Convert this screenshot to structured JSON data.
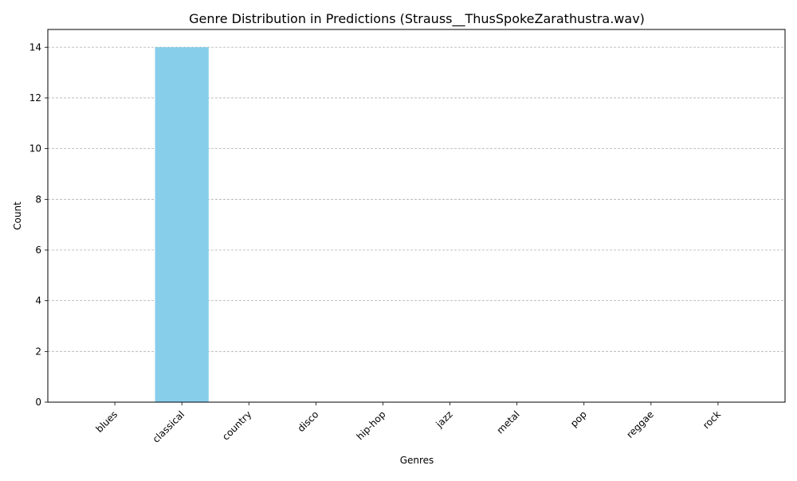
{
  "chart_data": {
    "type": "bar",
    "title": "Genre Distribution in Predictions (Strauss__ThusSpokeZarathustra.wav)",
    "xlabel": "Genres",
    "ylabel": "Count",
    "categories": [
      "blues",
      "classical",
      "country",
      "disco",
      "hip-hop",
      "jazz",
      "metal",
      "pop",
      "reggae",
      "rock"
    ],
    "values": [
      0,
      14,
      0,
      0,
      0,
      0,
      0,
      0,
      0,
      0
    ],
    "ylim": [
      0,
      14.7
    ],
    "yticks": [
      0,
      2,
      4,
      6,
      8,
      10,
      12,
      14
    ],
    "grid": "y-dashed",
    "bar_color": "#87ceeb",
    "grid_color": "#b0b0b0",
    "x_tick_rotation": 45
  }
}
